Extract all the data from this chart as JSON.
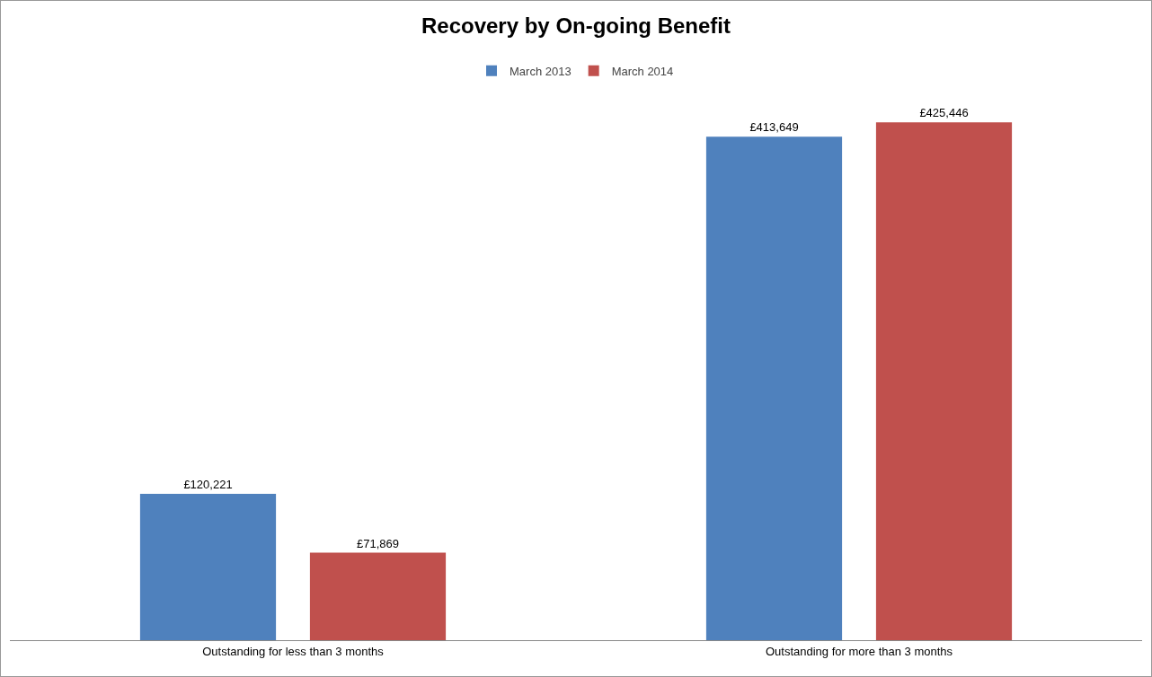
{
  "chart_data": {
    "type": "bar",
    "title": "Recovery by On-going Benefit",
    "categories": [
      "Outstanding for less than 3 months",
      "Outstanding for more than 3 months"
    ],
    "series": [
      {
        "name": "March 2013",
        "color": "#4f81bd",
        "values": [
          120221,
          413649
        ],
        "value_labels": [
          "£120,221",
          "£413,649"
        ]
      },
      {
        "name": "March 2014",
        "color": "#c0504d",
        "values": [
          71869,
          425446
        ],
        "value_labels": [
          "£71,869",
          "£425,446"
        ]
      }
    ],
    "tick_labels": "x",
    "grid": false,
    "legend": "top"
  }
}
